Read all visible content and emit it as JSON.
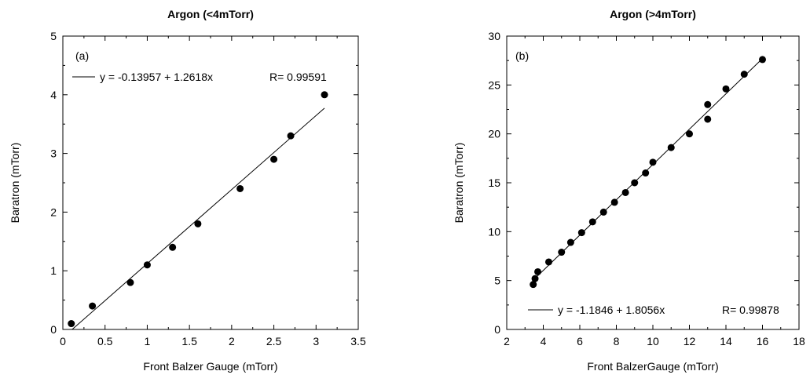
{
  "chart_data": [
    {
      "type": "scatter",
      "panel_label": "(a)",
      "title": "Argon (<4mTorr)",
      "xlabel": "Front Balzer Gauge (mTorr)",
      "ylabel": "Baratron (mTorr)",
      "xlim": [
        0,
        3.5
      ],
      "ylim": [
        0,
        5
      ],
      "xticks": [
        0,
        0.5,
        1,
        1.5,
        2,
        2.5,
        3,
        3.5
      ],
      "yticks": [
        0,
        1,
        2,
        3,
        4,
        5
      ],
      "xtick_labels": [
        "0",
        "0.5",
        "1",
        "1.5",
        "2",
        "2.5",
        "3",
        "3.5"
      ],
      "ytick_labels": [
        "0",
        "1",
        "2",
        "3",
        "4",
        "5"
      ],
      "grid": false,
      "legend_position": "top-left",
      "fit_equation": "y = -0.13957 + 1.2618x",
      "fit_r": "R= 0.99591",
      "fit": {
        "intercept": -0.13957,
        "slope": 1.2618,
        "x_range": [
          0.11,
          3.1
        ]
      },
      "series": [
        {
          "x": [
            0.1,
            0.35,
            0.8,
            1.0,
            1.3,
            1.6,
            2.1,
            2.5,
            2.7,
            3.1
          ],
          "y": [
            0.1,
            0.4,
            0.8,
            1.1,
            1.4,
            1.8,
            2.4,
            2.9,
            3.3,
            4.0
          ]
        }
      ]
    },
    {
      "type": "scatter",
      "panel_label": "(b)",
      "title": "Argon (>4mTorr)",
      "xlabel": "Front BalzerGauge (mTorr)",
      "ylabel": "Baratron (mTorr)",
      "xlim": [
        2,
        18
      ],
      "ylim": [
        0,
        30
      ],
      "xticks": [
        2,
        4,
        6,
        8,
        10,
        12,
        14,
        16,
        18
      ],
      "yticks": [
        0,
        5,
        10,
        15,
        20,
        25,
        30
      ],
      "xtick_labels": [
        "2",
        "4",
        "6",
        "8",
        "10",
        "12",
        "14",
        "16",
        "18"
      ],
      "ytick_labels": [
        "0",
        "5",
        "10",
        "15",
        "20",
        "25",
        "30"
      ],
      "grid": false,
      "legend_position": "bottom-left",
      "fit_equation": "y = -1.1846 + 1.8056x",
      "fit_r": "R= 0.99878",
      "fit": {
        "intercept": -1.1846,
        "slope": 1.8056,
        "x_range": [
          3.4,
          16
        ]
      },
      "series": [
        {
          "x": [
            3.45,
            3.55,
            3.7,
            4.3,
            5.0,
            5.5,
            6.1,
            6.7,
            7.3,
            7.9,
            8.5,
            9.0,
            9.6,
            10.0,
            11.0,
            12.0,
            13.0,
            13.0,
            14.0,
            15.0,
            16.0
          ],
          "y": [
            4.6,
            5.2,
            5.9,
            6.9,
            7.9,
            8.9,
            9.9,
            11.0,
            12.0,
            13.0,
            14.0,
            15.0,
            16.0,
            17.1,
            18.6,
            20.0,
            21.5,
            23.0,
            24.6,
            26.1,
            27.6
          ]
        }
      ]
    }
  ]
}
